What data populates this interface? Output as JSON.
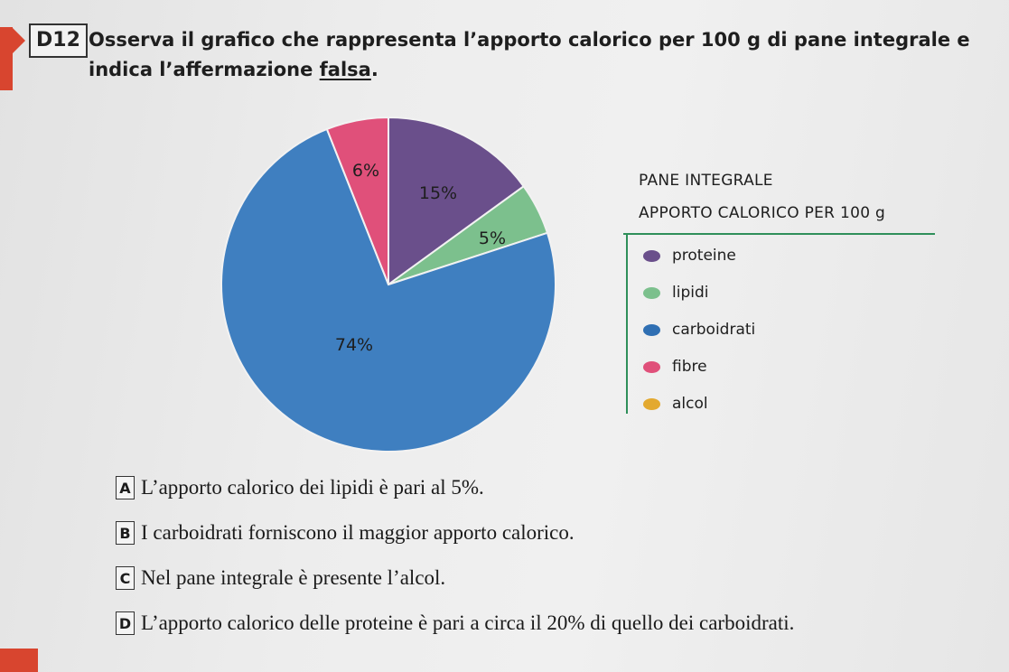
{
  "question": {
    "number": "D12",
    "text_before": "Osserva il grafico che rappresenta l’apporto calorico per 100 g di pane integrale e indica l’affermazione ",
    "text_emph": "falsa",
    "text_after": "."
  },
  "chart_data": {
    "type": "pie",
    "title": "PANE INTEGRALE",
    "subtitle": "APPORTO CALORICO PER 100 g",
    "legend": [
      "proteine",
      "lipidi",
      "carboidrati",
      "fibre",
      "alcol"
    ],
    "slices": [
      {
        "name": "proteine",
        "value": 15,
        "label": "15%",
        "color": "#6a4f8b"
      },
      {
        "name": "lipidi",
        "value": 5,
        "label": "5%",
        "color": "#7cc08d"
      },
      {
        "name": "carboidrati",
        "value": 74,
        "label": "74%",
        "color": "#3f7fc0"
      },
      {
        "name": "fibre",
        "value": 6,
        "label": "6%",
        "color": "#e0507a"
      }
    ],
    "legend_colors": [
      "#6a4f8b",
      "#7cc08d",
      "#2f6fb3",
      "#e0507a",
      "#e3a92f"
    ],
    "legend_placement": "right"
  },
  "options": [
    {
      "letter": "A",
      "text": "L’apporto calorico dei lipidi è pari al 5%."
    },
    {
      "letter": "B",
      "text": "I carboidrati forniscono il maggior apporto calorico."
    },
    {
      "letter": "C",
      "text": "Nel pane integrale è presente l’alcol."
    },
    {
      "letter": "D",
      "text": "L’apporto calorico delle proteine è pari a circa il 20% di quello dei carboidrati."
    }
  ]
}
